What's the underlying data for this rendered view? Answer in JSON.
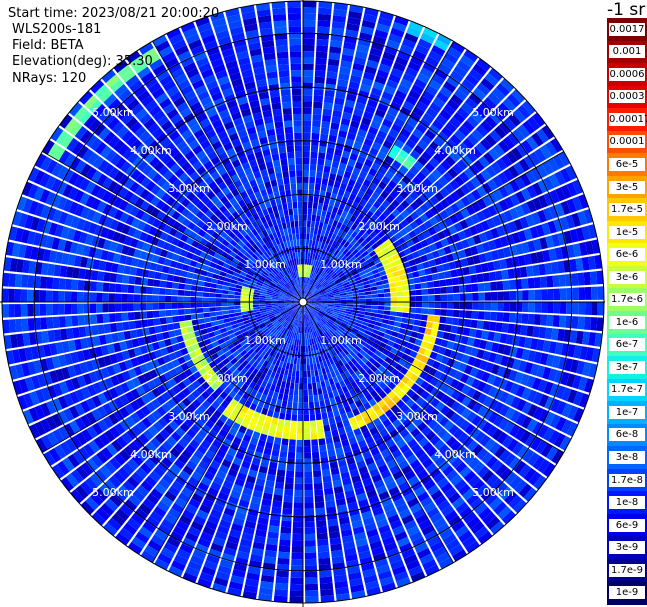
{
  "header": {
    "start_time": "Start time: 2023/08/21 20:00:20",
    "instrument": "WLS200s-181",
    "field": "Field: BETA",
    "elevation": "Elevation(deg): 35.30",
    "nrays": "NRays: 120"
  },
  "colorbar": {
    "unit": "-1 sr",
    "labels": [
      "0.0017",
      "0.001",
      "0.0006",
      "0.0003",
      "0.00017",
      "0.0001",
      "6e-5",
      "3e-5",
      "1.7e-5",
      "1e-5",
      "6e-6",
      "3e-6",
      "1.7e-6",
      "1e-6",
      "6e-7",
      "3e-7",
      "1.7e-7",
      "1e-7",
      "6e-8",
      "3e-8",
      "1.7e-8",
      "1e-8",
      "6e-9",
      "3e-9",
      "1.7e-9",
      "1e-9"
    ],
    "colors": [
      "#7f0000",
      "#a50000",
      "#c80000",
      "#e60000",
      "#ff1a00",
      "#ff4d00",
      "#ff7a00",
      "#ffa200",
      "#ffc800",
      "#ffe800",
      "#f2ff14",
      "#c8ff3c",
      "#9cff64",
      "#6cff90",
      "#40ffbc",
      "#14f0e6",
      "#00d4ff",
      "#00b0ff",
      "#008cff",
      "#0066ff",
      "#0040ff",
      "#0018ff",
      "#0000e8",
      "#0000bc",
      "#000090",
      "#000064"
    ]
  },
  "chart_data": {
    "type": "heatmap",
    "projection": "polar (PPI scan)",
    "n_rays": 120,
    "range_ring_labels": [
      "1.00km",
      "2.00km",
      "3.00km",
      "4.00km",
      "5.00km"
    ],
    "range_rings_km": [
      1,
      2,
      3,
      4,
      5
    ],
    "max_range_km": 5.6,
    "color_scale": "log",
    "value_range": [
      1e-09,
      0.0017
    ],
    "background_level": 1e-08,
    "features": [
      {
        "kind": "arc",
        "level": 6e-05,
        "r_km": 1.8,
        "from_deg": 55,
        "to_deg": 95
      },
      {
        "kind": "arc",
        "level": 0.0001,
        "r_km": 2.45,
        "from_deg": 95,
        "to_deg": 160
      },
      {
        "kind": "arc",
        "level": 6e-05,
        "r_km": 2.4,
        "from_deg": 170,
        "to_deg": 215
      },
      {
        "kind": "arc",
        "level": 3e-05,
        "r_km": 2.2,
        "from_deg": 225,
        "to_deg": 262
      },
      {
        "kind": "arc",
        "level": 3e-05,
        "r_km": 1.05,
        "from_deg": 262,
        "to_deg": 285
      },
      {
        "kind": "arc",
        "level": 1e-05,
        "r_km": 5.4,
        "from_deg": 300,
        "to_deg": 330
      },
      {
        "kind": "arc",
        "level": 3e-05,
        "r_km": 0.6,
        "from_deg": 350,
        "to_deg": 15
      },
      {
        "kind": "arc",
        "level": 1e-06,
        "r_km": 5.5,
        "from_deg": 22,
        "to_deg": 30
      },
      {
        "kind": "arc",
        "level": 6e-06,
        "r_km": 3.3,
        "from_deg": 30,
        "to_deg": 38
      }
    ]
  }
}
